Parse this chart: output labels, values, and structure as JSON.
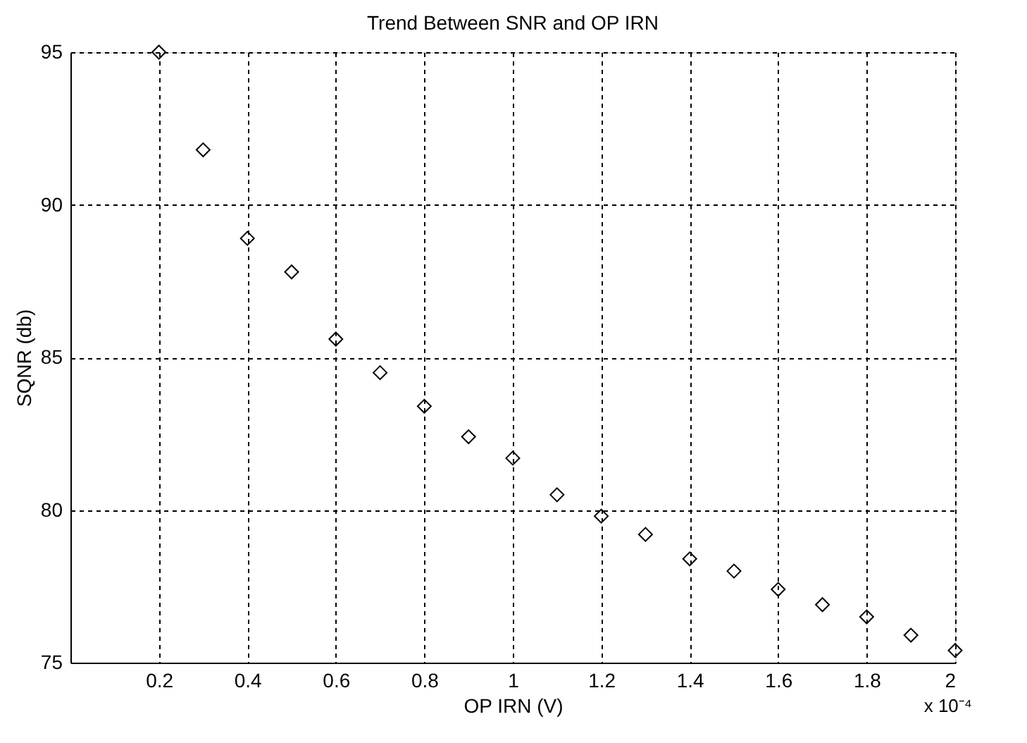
{
  "chart_data": {
    "type": "scatter",
    "title": "Trend Between SNR and OP IRN",
    "xlabel": "OP IRN  (V)",
    "ylabel": "SQNR  (db)",
    "x": [
      0.2,
      0.3,
      0.4,
      0.5,
      0.6,
      0.7,
      0.8,
      0.9,
      1,
      1.1,
      1.2,
      1.3,
      1.4,
      1.5,
      1.6,
      1.7,
      1.8,
      1.9,
      2
    ],
    "series": [
      {
        "color": "#000000",
        "values": [
          95.0,
          91.8,
          88.9,
          87.8,
          85.6,
          84.5,
          83.4,
          82.4,
          81.7,
          80.5,
          79.8,
          79.2,
          78.4,
          78.0,
          77.4,
          76.9,
          76.5,
          75.9,
          75.4
        ]
      }
    ],
    "xlim": [
      0,
      2
    ],
    "xticks": [
      0.2,
      0.4,
      0.6,
      0.8,
      1,
      1.2,
      1.4,
      1.6,
      1.8,
      2
    ],
    "ylim": [
      75,
      95
    ],
    "yticks": [
      75,
      80,
      85,
      90,
      95
    ],
    "grid": true,
    "marker": "diamond",
    "annotations": [
      "x 10⁻⁴"
    ]
  }
}
